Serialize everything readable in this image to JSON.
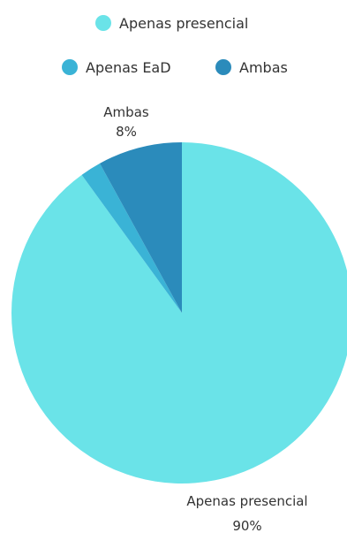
{
  "chart_data": {
    "type": "pie",
    "title": "",
    "legend_position": "top",
    "slices": [
      {
        "label": "Apenas presencial",
        "value": 90,
        "value_label": "90%",
        "color": "#6ae3e8"
      },
      {
        "label": "Apenas EaD",
        "value": 2,
        "value_label": "",
        "color": "#3ab3d6"
      },
      {
        "label": "Ambas",
        "value": 8,
        "value_label": "8%",
        "color": "#2b8bbb"
      }
    ]
  }
}
